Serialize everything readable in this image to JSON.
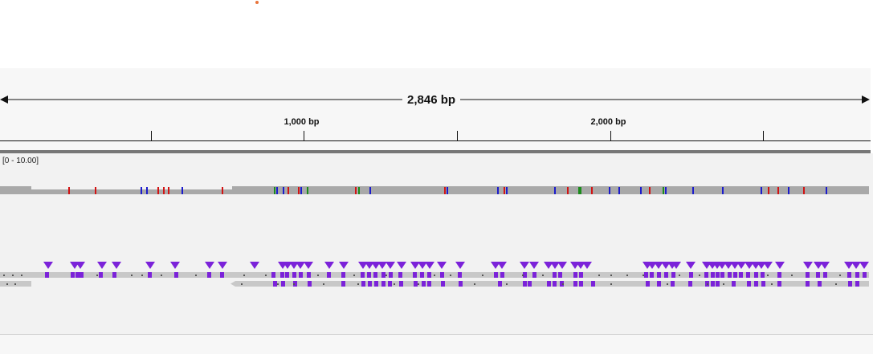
{
  "ruler": {
    "span_label": "2,846 bp",
    "ticks": [
      {
        "bp": 500,
        "label": ""
      },
      {
        "bp": 1000,
        "label": "1,000 bp"
      },
      {
        "bp": 1500,
        "label": ""
      },
      {
        "bp": 2000,
        "label": "2,000 bp"
      },
      {
        "bp": 2500,
        "label": ""
      }
    ]
  },
  "coverage_track": {
    "data_range": "[0 - 10.00]"
  },
  "colors": {
    "coverage_gray": "#a9a9a9",
    "read_gray": "#c8c8c8",
    "insertion_purple": "#7b22d9",
    "mismatch_red": "#d21414",
    "mismatch_blue": "#1c1ccc",
    "mismatch_green": "#1c8c1c"
  }
}
